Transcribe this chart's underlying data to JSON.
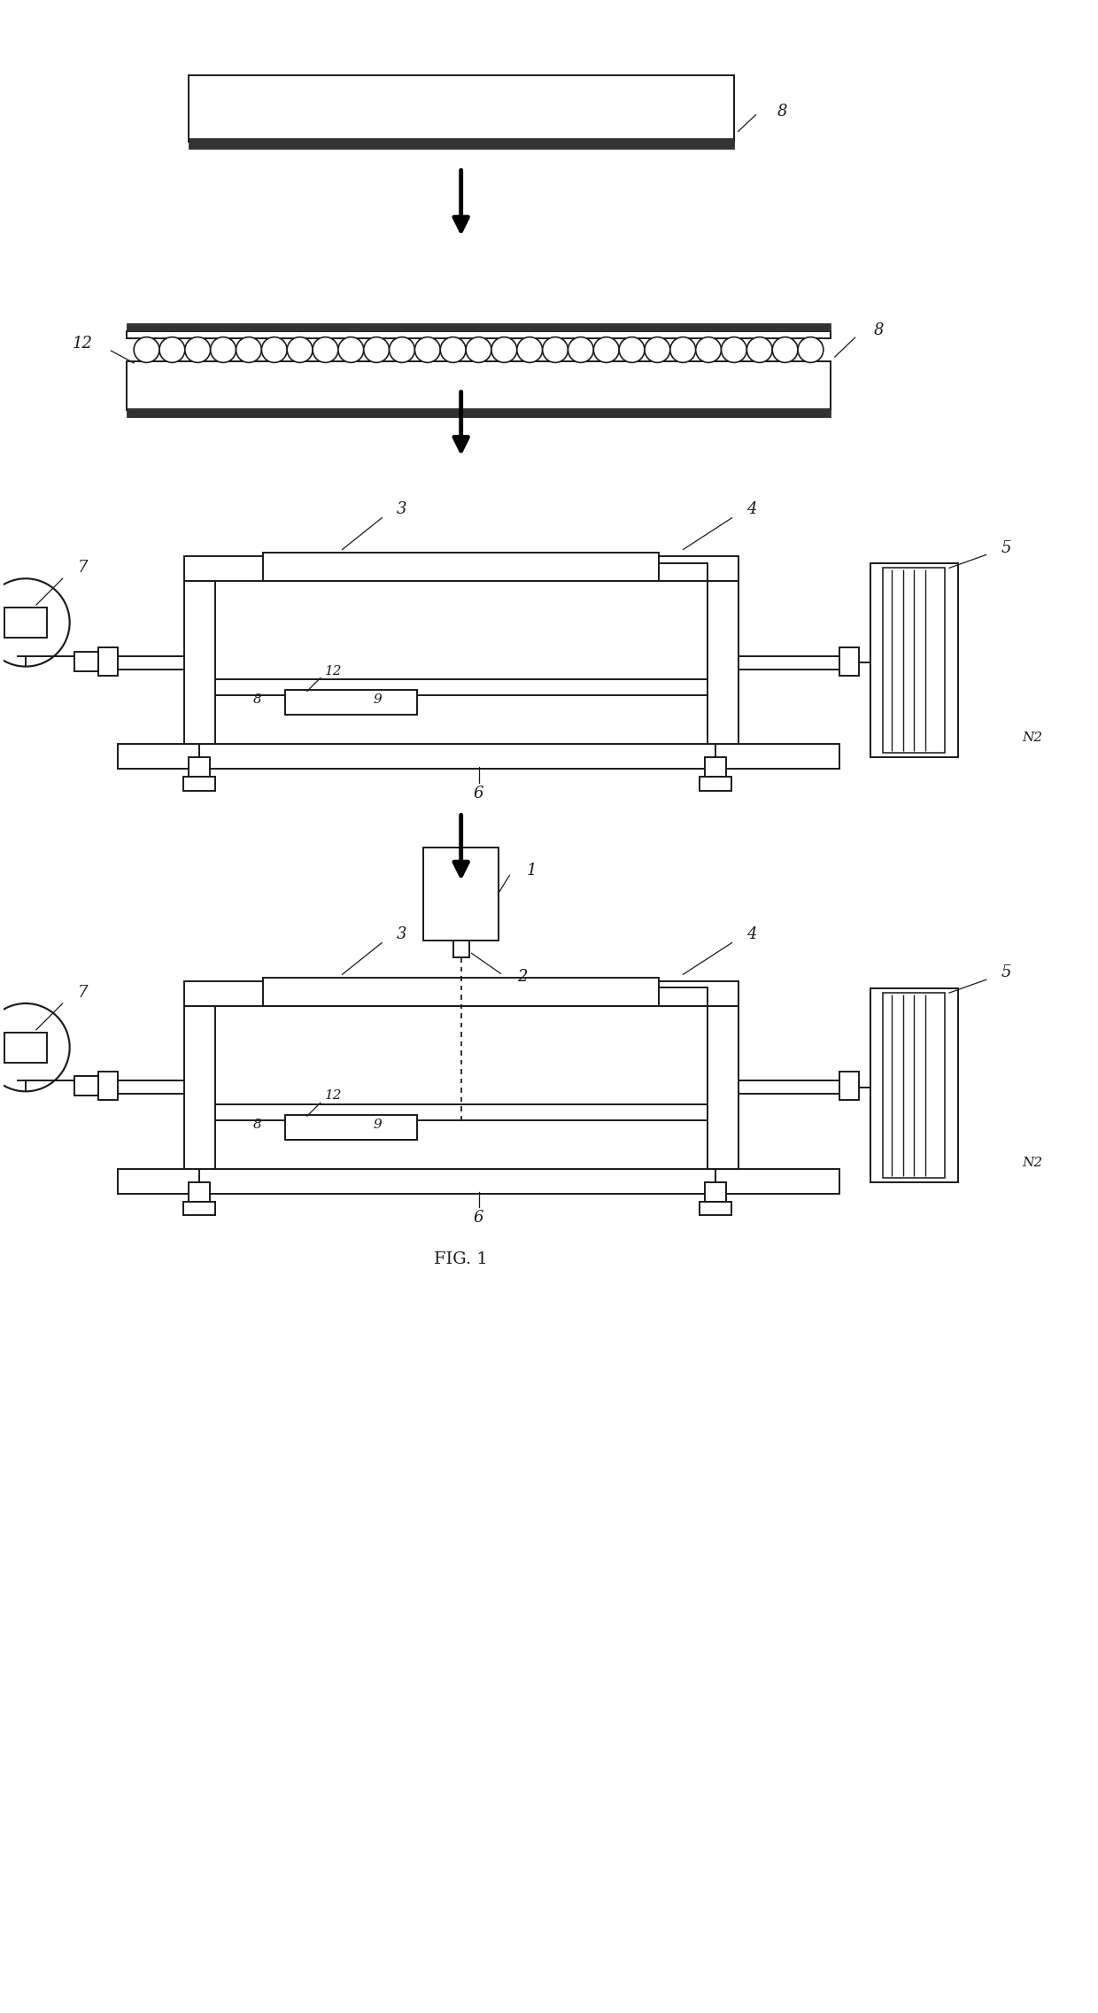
{
  "fig_label": "FIG. 1",
  "bg_color": "#ffffff",
  "lc": "#1a1a1a",
  "lw": 1.4,
  "fig_width": 12.4,
  "fig_height": 22.73,
  "labels": {
    "8_top": "8",
    "12_sec2": "12",
    "8_sec2": "8",
    "7_sec3": "7",
    "3_sec3": "3",
    "4_sec3": "4",
    "5_sec3": "5",
    "8_sec3": "8",
    "12_sec3": "12",
    "9_sec3": "9",
    "6_sec3": "6",
    "N2_sec3": "N2",
    "1_sec4": "1",
    "2_sec4": "2",
    "7_sec4": "7",
    "3_sec4": "3",
    "4_sec4": "4",
    "5_sec4": "5",
    "8_sec4": "8",
    "12_sec4": "12",
    "9_sec4": "9",
    "6_sec4": "6",
    "N2_sec4": "N2"
  }
}
